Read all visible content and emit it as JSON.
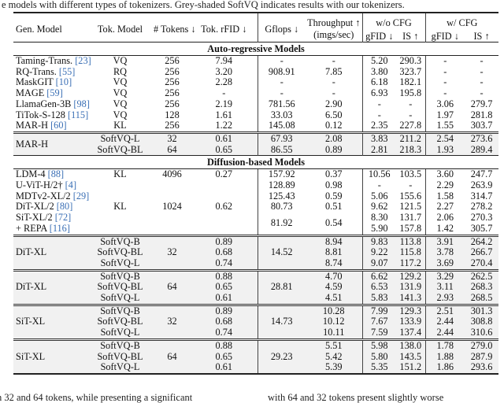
{
  "caption_fragment": "e models with different types of tokenizers. Grey-shaded SoftVQ indicates results with our tokenizers.",
  "footer": {
    "left": "h 32 and 64 tokens, while presenting a significant",
    "right": "with 64 and 32 tokens present slightly worse"
  },
  "header": {
    "gen_model": "Gen. Model",
    "tok_model": "Tok. Model",
    "tokens": "# Tokens ↓",
    "rfid": "Tok. rFID ↓",
    "gflops": "Gflops ↓",
    "throughput": "Throughput",
    "throughput_unit": "(imgs/sec)",
    "throughput_arrow": "↑",
    "wo_cfg": "w/o CFG",
    "w_cfg": "w/ CFG",
    "gfid": "gFID ↓",
    "is": "IS ↑"
  },
  "sections": {
    "ar": "Auto-regressive Models",
    "diff": "Diffusion-based Models"
  },
  "ar_rows": [
    [
      "Taming-Trans.",
      "23",
      "VQ",
      "256",
      "7.94",
      "-",
      "-",
      "5.20",
      "290.3",
      "-",
      "-"
    ],
    [
      "RQ-Trans.",
      "55",
      "RQ",
      "256",
      "3.20",
      "908.91",
      "7.85",
      "3.80",
      "323.7",
      "-",
      "-"
    ],
    [
      "MaskGIT",
      "10",
      "VQ",
      "256",
      "2.28",
      "-",
      "-",
      "6.18",
      "182.1",
      "-",
      "-"
    ],
    [
      "MAGE",
      "59",
      "VQ",
      "256",
      "-",
      "-",
      "-",
      "6.93",
      "195.8",
      "-",
      "-"
    ],
    [
      "LlamaGen-3B",
      "98",
      "VQ",
      "256",
      "2.19",
      "781.56",
      "2.90",
      "-",
      "-",
      "3.06",
      "279.7"
    ],
    [
      "TiTok-S-128",
      "115",
      "VQ",
      "128",
      "1.61",
      "33.03",
      "6.50",
      "-",
      "-",
      "1.97",
      "281.8"
    ],
    [
      "MAR-H",
      "60",
      "KL",
      "256",
      "1.22",
      "145.08",
      "0.12",
      "2.35",
      "227.8",
      "1.55",
      "303.7"
    ]
  ],
  "mar_rows": [
    [
      "MAR-H",
      "",
      "SoftVQ-L",
      "32",
      "0.61",
      "67.93",
      "2.08",
      "3.83",
      "211.2",
      "2.54",
      "273.6"
    ],
    [
      "",
      "",
      "SoftVQ-BL",
      "64",
      "0.65",
      "86.55",
      "0.89",
      "2.81",
      "218.3",
      "1.93",
      "289.4"
    ]
  ],
  "diff_rows": [
    [
      "LDM-4",
      "88",
      "KL",
      "4096",
      "0.27",
      "157.92",
      "0.37",
      "10.56",
      "103.5",
      "3.60",
      "247.7"
    ],
    [
      "U-ViT-H/2†",
      "4",
      "",
      "",
      "",
      "128.89",
      "0.98",
      "-",
      "-",
      "2.29",
      "263.9"
    ],
    [
      "MDTv2-XL/2",
      "29",
      "",
      "",
      "",
      "125.43",
      "0.59",
      "5.06",
      "155.6",
      "1.58",
      "314.7"
    ],
    [
      "DiT-XL/2",
      "80",
      "KL",
      "1024",
      "0.62",
      "80.73",
      "0.51",
      "9.62",
      "121.5",
      "2.27",
      "278.2"
    ],
    [
      "SiT-XL/2",
      "72",
      "",
      "",
      "",
      "81.92",
      "0.54",
      "8.30",
      "131.7",
      "2.06",
      "270.3"
    ],
    [
      "+ REPA",
      "116",
      "",
      "",
      "",
      "",
      "",
      "5.90",
      "157.8",
      "1.42",
      "305.7"
    ]
  ],
  "soft_groups": [
    {
      "rows": [
        [
          "DiT-XL",
          "",
          "SoftVQ-B",
          "32",
          "0.89",
          "14.52",
          "8.94",
          "9.83",
          "113.8",
          "3.91",
          "264.2"
        ],
        [
          "",
          "",
          "SoftVQ-BL",
          "",
          "0.68",
          "",
          "8.81",
          "9.22",
          "115.8",
          "3.78",
          "266.7"
        ],
        [
          "",
          "",
          "SoftVQ-L",
          "",
          "0.74",
          "",
          "8.74",
          "9.07",
          "117.2",
          "3.69",
          "270.4"
        ]
      ]
    },
    {
      "rows": [
        [
          "DiT-XL",
          "",
          "SoftVQ-B",
          "64",
          "0.88",
          "28.81",
          "4.70",
          "6.62",
          "129.2",
          "3.29",
          "262.5"
        ],
        [
          "",
          "",
          "SoftVQ-BL",
          "",
          "0.65",
          "",
          "4.59",
          "6.53",
          "131.9",
          "3.11",
          "268.3"
        ],
        [
          "",
          "",
          "SoftVQ-L",
          "",
          "0.61",
          "",
          "4.51",
          "5.83",
          "141.3",
          "2.93",
          "268.5"
        ]
      ]
    },
    {
      "rows": [
        [
          "SiT-XL",
          "",
          "SoftVQ-B",
          "32",
          "0.89",
          "14.73",
          "10.28",
          "7.99",
          "129.3",
          "2.51",
          "301.3"
        ],
        [
          "",
          "",
          "SoftVQ-BL",
          "",
          "0.68",
          "",
          "10.12",
          "7.67",
          "133.9",
          "2.44",
          "308.8"
        ],
        [
          "",
          "",
          "SoftVQ-L",
          "",
          "0.74",
          "",
          "10.11",
          "7.59",
          "137.4",
          "2.44",
          "310.6"
        ]
      ]
    },
    {
      "rows": [
        [
          "SiT-XL",
          "",
          "SoftVQ-B",
          "64",
          "0.88",
          "29.23",
          "5.51",
          "5.98",
          "138.0",
          "1.78",
          "279.0"
        ],
        [
          "",
          "",
          "SoftVQ-BL",
          "",
          "0.65",
          "",
          "5.42",
          "5.80",
          "143.5",
          "1.88",
          "287.9"
        ],
        [
          "",
          "",
          "SoftVQ-L",
          "",
          "0.61",
          "",
          "5.39",
          "5.35",
          "151.2",
          "1.86",
          "293.6"
        ]
      ]
    }
  ],
  "colors": {
    "citation": "#3a6fb5",
    "shade": "#f1f1f1"
  }
}
